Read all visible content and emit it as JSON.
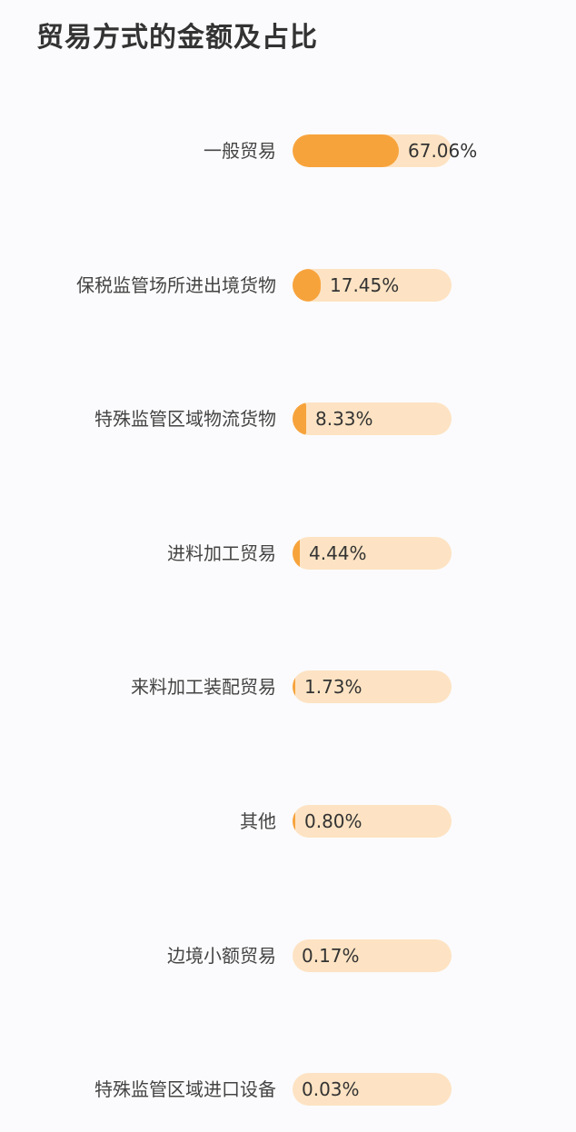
{
  "chart_data": {
    "type": "bar",
    "title": "贸易方式的金额及占比",
    "categories": [
      "一般贸易",
      "保税监管场所进出境货物",
      "特殊监管区域物流货物",
      "进料加工贸易",
      "来料加工装配贸易",
      "其他",
      "边境小额贸易",
      "特殊监管区域进口设备"
    ],
    "values": [
      67.06,
      17.45,
      8.33,
      4.44,
      1.73,
      0.8,
      0.17,
      0.03
    ],
    "value_labels": [
      "67.06%",
      "17.45%",
      "8.33%",
      "4.44%",
      "1.73%",
      "0.80%",
      "0.17%",
      "0.03%"
    ],
    "unit": "%",
    "xlim": [
      0,
      100
    ],
    "orientation": "horizontal",
    "grid": false,
    "legend": "none",
    "colors": {
      "bar_fill": "#f7a33c",
      "bar_track": "#fde3c3"
    }
  }
}
